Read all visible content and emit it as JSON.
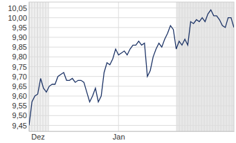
{
  "chart_data": {
    "type": "line",
    "categories": [
      null,
      null,
      null,
      "Dez",
      null,
      null,
      null,
      null,
      null,
      null,
      null,
      null,
      null,
      null,
      null,
      null,
      null,
      null,
      null,
      null,
      null,
      null,
      null,
      null,
      null,
      null,
      null,
      null,
      null,
      null,
      null,
      "Jan",
      null,
      null,
      null,
      null,
      null,
      null,
      null,
      null,
      null,
      null,
      null,
      null,
      null,
      null,
      null,
      null,
      null,
      null,
      null,
      null,
      null,
      null,
      null,
      null,
      null,
      null,
      null,
      null,
      null,
      null,
      null,
      null,
      null,
      null,
      null,
      null,
      null,
      null,
      null,
      null
    ],
    "values": [
      9.45,
      9.57,
      9.6,
      9.61,
      9.69,
      9.64,
      9.62,
      9.65,
      9.66,
      9.66,
      9.7,
      9.71,
      9.72,
      9.68,
      9.68,
      9.69,
      9.67,
      9.68,
      9.68,
      9.67,
      9.62,
      9.57,
      9.6,
      9.64,
      9.57,
      9.6,
      9.72,
      9.77,
      9.76,
      9.79,
      9.84,
      9.81,
      9.82,
      9.83,
      9.81,
      9.84,
      9.86,
      9.86,
      9.88,
      9.86,
      9.87,
      9.7,
      9.73,
      9.8,
      9.84,
      9.87,
      9.85,
      9.89,
      9.92,
      9.96,
      9.94,
      9.84,
      9.88,
      9.86,
      9.89,
      9.86,
      9.98,
      9.97,
      9.99,
      9.98,
      10.0,
      9.98,
      10.02,
      10.04,
      10.01,
      10.01,
      9.99,
      9.96,
      9.95,
      10.0,
      10.0,
      9.95
    ],
    "color": "#1c3366",
    "ylim": [
      9.42,
      10.08
    ],
    "yticks": [
      {
        "value": 9.45,
        "label": "9,45"
      },
      {
        "value": 9.5,
        "label": "9,50"
      },
      {
        "value": 9.55,
        "label": "9,55"
      },
      {
        "value": 9.6,
        "label": "9,60"
      },
      {
        "value": 9.65,
        "label": "9,65"
      },
      {
        "value": 9.7,
        "label": "9,70"
      },
      {
        "value": 9.75,
        "label": "9,75"
      },
      {
        "value": 9.8,
        "label": "9,80"
      },
      {
        "value": 9.85,
        "label": "9,85"
      },
      {
        "value": 9.9,
        "label": "9,90"
      },
      {
        "value": 9.95,
        "label": "9,95"
      },
      {
        "value": 10,
        "label": "10,00"
      },
      {
        "value": 10.05,
        "label": "10,05"
      }
    ],
    "grid": true
  }
}
